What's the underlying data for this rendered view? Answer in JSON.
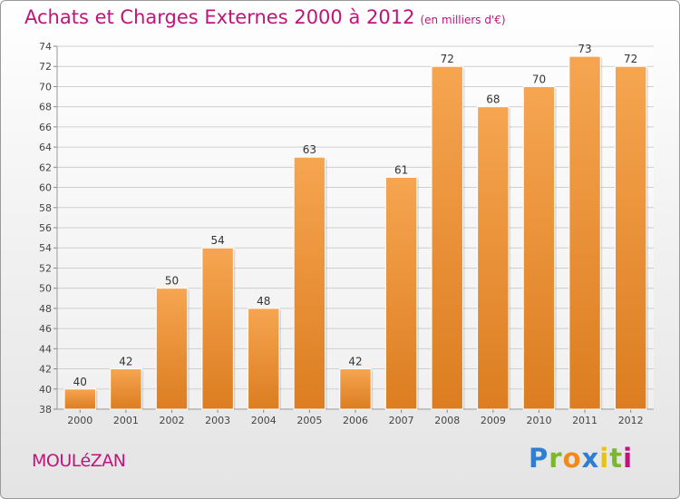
{
  "header": {
    "title": "Achats et Charges Externes 2000 à 2012",
    "unit": "(en milliers d'€)"
  },
  "commune": "MOULéZAN",
  "logo": {
    "letters": [
      "P",
      "r",
      "o",
      "x",
      "i",
      "t",
      "i"
    ],
    "colors": [
      "#2e7fd1",
      "#7bb82e",
      "#f08a1c",
      "#2e7fd1",
      "#e6c11b",
      "#7bb82e",
      "#c0147a"
    ]
  },
  "colors": {
    "bar": "#f2a049",
    "bar_dark": "#d87a1c",
    "title": "#c0147a",
    "grid": "#cfcfcf"
  },
  "chart_data": {
    "type": "bar",
    "title": "Achats et Charges Externes 2000 à 2012",
    "subtitle": "(en milliers d'€)",
    "xlabel": "",
    "ylabel": "",
    "categories": [
      "2000",
      "2001",
      "2002",
      "2003",
      "2004",
      "2005",
      "2006",
      "2007",
      "2008",
      "2009",
      "2010",
      "2011",
      "2012"
    ],
    "values": [
      40,
      42,
      50,
      54,
      48,
      63,
      42,
      61,
      72,
      68,
      70,
      73,
      72
    ],
    "ylim": [
      38,
      74
    ],
    "yticks": [
      38,
      40,
      42,
      44,
      46,
      48,
      50,
      52,
      54,
      56,
      58,
      60,
      62,
      64,
      66,
      68,
      70,
      72,
      74
    ],
    "grid": true,
    "data_labels": true
  }
}
